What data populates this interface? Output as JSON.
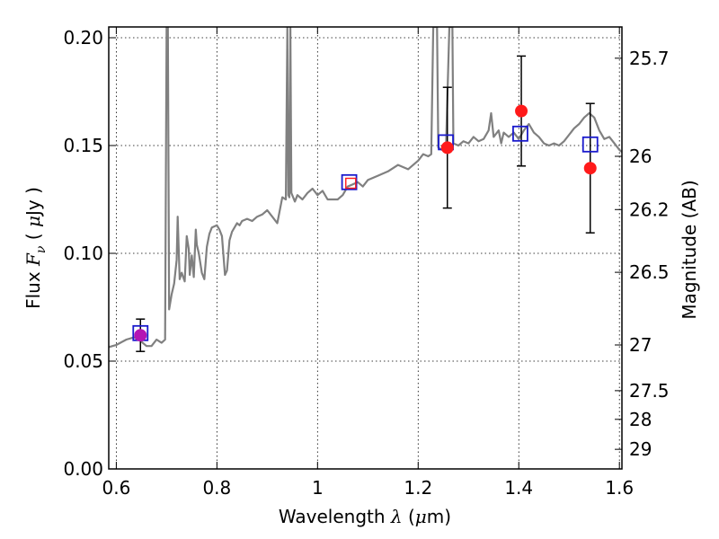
{
  "chart_data": {
    "type": "line",
    "xlabel": {
      "prefix": "Wavelength",
      "symbol": "λ",
      "unit_open": " (",
      "unit_mu": "μ",
      "unit_rest": "m)"
    },
    "ylabel": {
      "prefix": "Flux",
      "symbol": "F",
      "symbol_sub": "ν",
      "unit_open": " ( ",
      "unit_mu": "μ",
      "unit_rest": "Jy )"
    },
    "y2label": "Magnitude (AB)",
    "xlim": [
      0.585,
      1.605
    ],
    "ylim": [
      0.0,
      0.205
    ],
    "grid": true,
    "x_ticks": [
      {
        "value": 0.6,
        "label": "0.6"
      },
      {
        "value": 0.8,
        "label": "0.8"
      },
      {
        "value": 1.0,
        "label": "1"
      },
      {
        "value": 1.2,
        "label": "1.2"
      },
      {
        "value": 1.4,
        "label": "1.4"
      },
      {
        "value": 1.6,
        "label": "1.6"
      }
    ],
    "y_ticks": [
      {
        "value": 0.0,
        "label": "0.00"
      },
      {
        "value": 0.05,
        "label": "0.05"
      },
      {
        "value": 0.1,
        "label": "0.10"
      },
      {
        "value": 0.15,
        "label": "0.15"
      },
      {
        "value": 0.2,
        "label": "0.20"
      }
    ],
    "y2_ticks": [
      {
        "flux": 0.1905,
        "label": "25.7"
      },
      {
        "flux": 0.145,
        "label": "26"
      },
      {
        "flux": 0.1203,
        "label": "26.2"
      },
      {
        "flux": 0.0912,
        "label": "26.5"
      },
      {
        "flux": 0.0575,
        "label": "27"
      },
      {
        "flux": 0.0363,
        "label": "27.5"
      },
      {
        "flux": 0.023,
        "label": "28"
      },
      {
        "flux": 0.0091,
        "label": "29"
      }
    ],
    "series": [
      {
        "kind": "model_spectrum",
        "color": "#808080",
        "points": [
          [
            0.585,
            0.0565
          ],
          [
            0.6,
            0.0575
          ],
          [
            0.62,
            0.06
          ],
          [
            0.635,
            0.061
          ],
          [
            0.645,
            0.06
          ],
          [
            0.66,
            0.057
          ],
          [
            0.67,
            0.057
          ],
          [
            0.68,
            0.06
          ],
          [
            0.69,
            0.0585
          ],
          [
            0.697,
            0.06
          ],
          [
            0.7,
            0.205
          ],
          [
            0.7025,
            0.205
          ],
          [
            0.705,
            0.074
          ],
          [
            0.71,
            0.081
          ],
          [
            0.715,
            0.086
          ],
          [
            0.72,
            0.097
          ],
          [
            0.722,
            0.117
          ],
          [
            0.726,
            0.088
          ],
          [
            0.73,
            0.091
          ],
          [
            0.736,
            0.087
          ],
          [
            0.74,
            0.108
          ],
          [
            0.744,
            0.102
          ],
          [
            0.746,
            0.09
          ],
          [
            0.75,
            0.099
          ],
          [
            0.754,
            0.089
          ],
          [
            0.758,
            0.111
          ],
          [
            0.76,
            0.104
          ],
          [
            0.764,
            0.1
          ],
          [
            0.77,
            0.091
          ],
          [
            0.775,
            0.088
          ],
          [
            0.78,
            0.103
          ],
          [
            0.785,
            0.109
          ],
          [
            0.79,
            0.112
          ],
          [
            0.8,
            0.113
          ],
          [
            0.805,
            0.111
          ],
          [
            0.81,
            0.108
          ],
          [
            0.816,
            0.09
          ],
          [
            0.82,
            0.092
          ],
          [
            0.825,
            0.106
          ],
          [
            0.83,
            0.11
          ],
          [
            0.84,
            0.114
          ],
          [
            0.845,
            0.113
          ],
          [
            0.85,
            0.115
          ],
          [
            0.86,
            0.116
          ],
          [
            0.87,
            0.115
          ],
          [
            0.88,
            0.117
          ],
          [
            0.89,
            0.118
          ],
          [
            0.9,
            0.12
          ],
          [
            0.91,
            0.117
          ],
          [
            0.92,
            0.114
          ],
          [
            0.93,
            0.126
          ],
          [
            0.937,
            0.125
          ],
          [
            0.94,
            0.205
          ],
          [
            0.942,
            0.127
          ],
          [
            0.944,
            0.126
          ],
          [
            0.946,
            0.205
          ],
          [
            0.948,
            0.128
          ],
          [
            0.955,
            0.124
          ],
          [
            0.96,
            0.127
          ],
          [
            0.97,
            0.125
          ],
          [
            0.98,
            0.128
          ],
          [
            0.99,
            0.13
          ],
          [
            1.0,
            0.127
          ],
          [
            1.01,
            0.129
          ],
          [
            1.02,
            0.125
          ],
          [
            1.04,
            0.125
          ],
          [
            1.05,
            0.127
          ],
          [
            1.06,
            0.131
          ],
          [
            1.07,
            0.132
          ],
          [
            1.08,
            0.133
          ],
          [
            1.09,
            0.131
          ],
          [
            1.1,
            0.134
          ],
          [
            1.12,
            0.136
          ],
          [
            1.14,
            0.138
          ],
          [
            1.16,
            0.141
          ],
          [
            1.18,
            0.139
          ],
          [
            1.2,
            0.143
          ],
          [
            1.21,
            0.146
          ],
          [
            1.22,
            0.145
          ],
          [
            1.226,
            0.146
          ],
          [
            1.23,
            0.205
          ],
          [
            1.2375,
            0.205
          ],
          [
            1.24,
            0.149
          ],
          [
            1.255,
            0.147
          ],
          [
            1.262,
            0.205
          ],
          [
            1.268,
            0.205
          ],
          [
            1.27,
            0.151
          ],
          [
            1.28,
            0.15
          ],
          [
            1.29,
            0.152
          ],
          [
            1.3,
            0.151
          ],
          [
            1.31,
            0.154
          ],
          [
            1.32,
            0.152
          ],
          [
            1.33,
            0.153
          ],
          [
            1.34,
            0.157
          ],
          [
            1.345,
            0.165
          ],
          [
            1.35,
            0.154
          ],
          [
            1.36,
            0.157
          ],
          [
            1.365,
            0.151
          ],
          [
            1.37,
            0.156
          ],
          [
            1.38,
            0.154
          ],
          [
            1.39,
            0.156
          ],
          [
            1.4,
            0.153
          ],
          [
            1.41,
            0.157
          ],
          [
            1.42,
            0.16
          ],
          [
            1.43,
            0.156
          ],
          [
            1.44,
            0.154
          ],
          [
            1.45,
            0.151
          ],
          [
            1.46,
            0.15
          ],
          [
            1.47,
            0.151
          ],
          [
            1.48,
            0.15
          ],
          [
            1.49,
            0.152
          ],
          [
            1.5,
            0.155
          ],
          [
            1.51,
            0.158
          ],
          [
            1.52,
            0.16
          ],
          [
            1.53,
            0.163
          ],
          [
            1.54,
            0.165
          ],
          [
            1.55,
            0.163
          ],
          [
            1.56,
            0.157
          ],
          [
            1.57,
            0.153
          ],
          [
            1.58,
            0.154
          ],
          [
            1.59,
            0.151
          ],
          [
            1.6,
            0.148
          ],
          [
            1.605,
            0.147
          ]
        ]
      },
      {
        "kind": "observed_flux",
        "marker": "circle",
        "color": "#ff1a1a",
        "errorbar_color": "#000000",
        "points": [
          {
            "x": 0.648,
            "y": 0.062,
            "err": 0.0075
          },
          {
            "x": 1.258,
            "y": 0.149,
            "err": 0.028
          },
          {
            "x": 1.405,
            "y": 0.166,
            "err": 0.0255
          },
          {
            "x": 1.542,
            "y": 0.1395,
            "err": 0.03
          }
        ]
      },
      {
        "kind": "model_band_flux",
        "marker": "square",
        "color": "#1a1acc",
        "points": [
          {
            "x": 0.648,
            "y": 0.063
          },
          {
            "x": 1.063,
            "y": 0.133
          },
          {
            "x": 1.255,
            "y": 0.1515
          },
          {
            "x": 1.403,
            "y": 0.1555
          },
          {
            "x": 1.542,
            "y": 0.1505
          }
        ]
      },
      {
        "kind": "upper_limit",
        "marker": "square",
        "color": "#ff1a1a",
        "points": [
          {
            "x": 1.066,
            "y": 0.1325
          }
        ]
      }
    ]
  }
}
